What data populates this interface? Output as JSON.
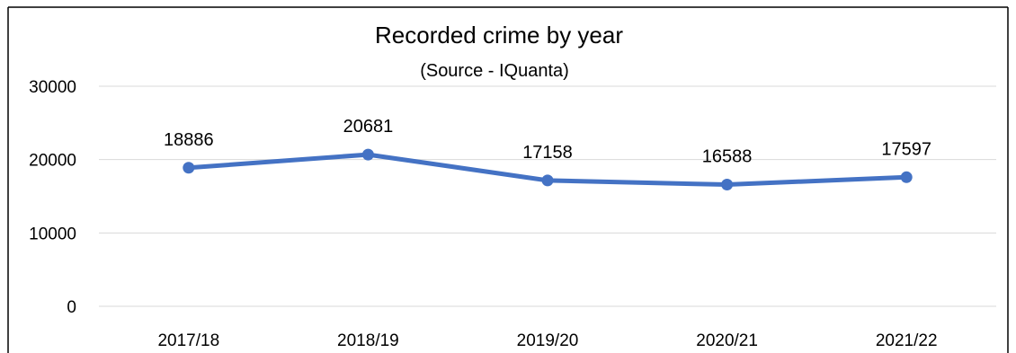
{
  "chart_data": {
    "type": "line",
    "title": "Recorded crime by year",
    "subtitle": "(Source - IQuanta)",
    "xlabel": "",
    "ylabel": "",
    "categories": [
      "2017/18",
      "2018/19",
      "2019/20",
      "2020/21",
      "2021/22"
    ],
    "series": [
      {
        "values": [
          18886,
          20681,
          17158,
          16588,
          17597
        ],
        "color": "#4472C4"
      }
    ],
    "data_labels": [
      "18886",
      "20681",
      "17158",
      "16588",
      "17597"
    ],
    "ylim": [
      0,
      30000
    ],
    "y_ticks": [
      0,
      10000,
      20000,
      30000
    ],
    "y_tick_labels": [
      "0",
      "10000",
      "20000",
      "30000"
    ],
    "grid": true,
    "legend": "none",
    "gridline_color": "#D9D9D9",
    "frame_color": "#000000"
  }
}
